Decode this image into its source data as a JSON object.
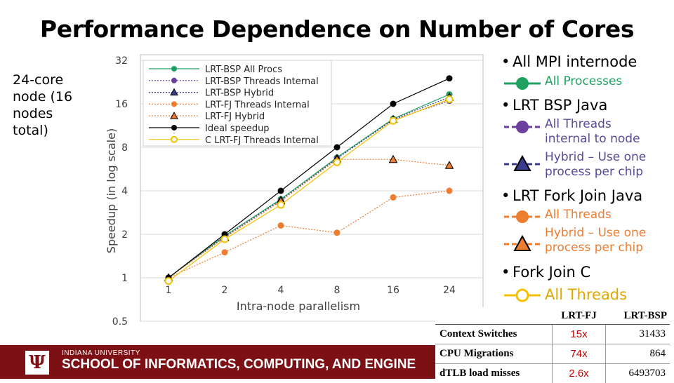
{
  "slide": {
    "title": "Performance Dependence on Number of Cores",
    "subtitle_lines": [
      "24-core",
      "node (16",
      "nodes",
      "total)"
    ]
  },
  "legend_panel": {
    "bullet1": "All MPI internode",
    "bullet1_sub": "All Processes",
    "bullet2": "LRT BSP Java",
    "bullet2_sub1": [
      "All Threads",
      "internal to node"
    ],
    "bullet2_sub2": [
      "Hybrid – Use one",
      "process per chip"
    ],
    "bullet3": "LRT Fork Join Java",
    "bullet3_sub1": "All Threads",
    "bullet3_sub2": [
      "Hybrid – Use one",
      "process per chip"
    ],
    "bullet4": "Fork Join C",
    "bullet4_sub": "All Threads"
  },
  "stats_table": {
    "headers": [
      "",
      "LRT-FJ",
      "LRT-BSP"
    ],
    "rows": [
      {
        "label": "Context Switches",
        "ratio": "15x",
        "bsp": "31433"
      },
      {
        "label": "CPU Migrations",
        "ratio": "74x",
        "bsp": "864"
      },
      {
        "label": "dTLB load misses",
        "ratio": "2.6x",
        "bsp": "6493703"
      }
    ]
  },
  "footer": {
    "university": "INDIANA UNIVERSITY",
    "school": "SCHOOL OF INFORMATICS, COMPUTING, AND ENGINE"
  },
  "colors": {
    "green": "#1fa260",
    "purple": "#6a3fa0",
    "orange": "#ed7d31",
    "black": "#000000",
    "yellow": "#f2c200",
    "slate": "#5b6fae"
  },
  "chart_data": {
    "type": "line",
    "ylabel": "Speedup (in log scale)",
    "xlabel": "Intra-node parallelism",
    "categories": [
      "1",
      "2",
      "4",
      "8",
      "16",
      "24"
    ],
    "y_scale": "log2",
    "ylim": [
      0.5,
      32
    ],
    "y_ticks": [
      "0.5",
      "1",
      "2",
      "4",
      "8",
      "16",
      "32"
    ],
    "legend_position": "top-left",
    "series": [
      {
        "name": "LRT-BSP All Procs",
        "marker": "circle",
        "color": "#1fa260",
        "dash": "none",
        "values": [
          1,
          1.95,
          3.5,
          6.8,
          12.6,
          18.6
        ]
      },
      {
        "name": "LRT-BSP Threads Internal",
        "marker": "circle",
        "color": "#6a3fa0",
        "dash": "dot",
        "values": [
          1,
          1.9,
          3.4,
          6.7,
          12.4,
          16.8
        ]
      },
      {
        "name": "LRT-BSP Hybrid",
        "marker": "triangle",
        "color": "#3b3b8f",
        "dash": "dot",
        "values": [
          1,
          1.92,
          3.45,
          6.7,
          12.5,
          17.8
        ]
      },
      {
        "name": "LRT-FJ Threads Internal",
        "marker": "circle",
        "color": "#ed7d31",
        "dash": "dot",
        "values": [
          1,
          1.5,
          2.3,
          2.05,
          3.6,
          4.0
        ]
      },
      {
        "name": "LRT-FJ Hybrid",
        "marker": "triangle",
        "color": "#ed7d31",
        "dash": "dot",
        "values": [
          1,
          1.9,
          3.4,
          6.6,
          6.6,
          6.0
        ]
      },
      {
        "name": "Ideal speedup",
        "marker": "circle",
        "color": "#000000",
        "dash": "none",
        "values": [
          1,
          2,
          4,
          8,
          16,
          24
        ]
      },
      {
        "name": "C LRT-FJ Threads Internal",
        "marker": "open-circle",
        "color": "#f2c200",
        "dash": "none",
        "values": [
          0.95,
          1.85,
          3.2,
          6.3,
          12.2,
          17.2
        ]
      }
    ]
  }
}
